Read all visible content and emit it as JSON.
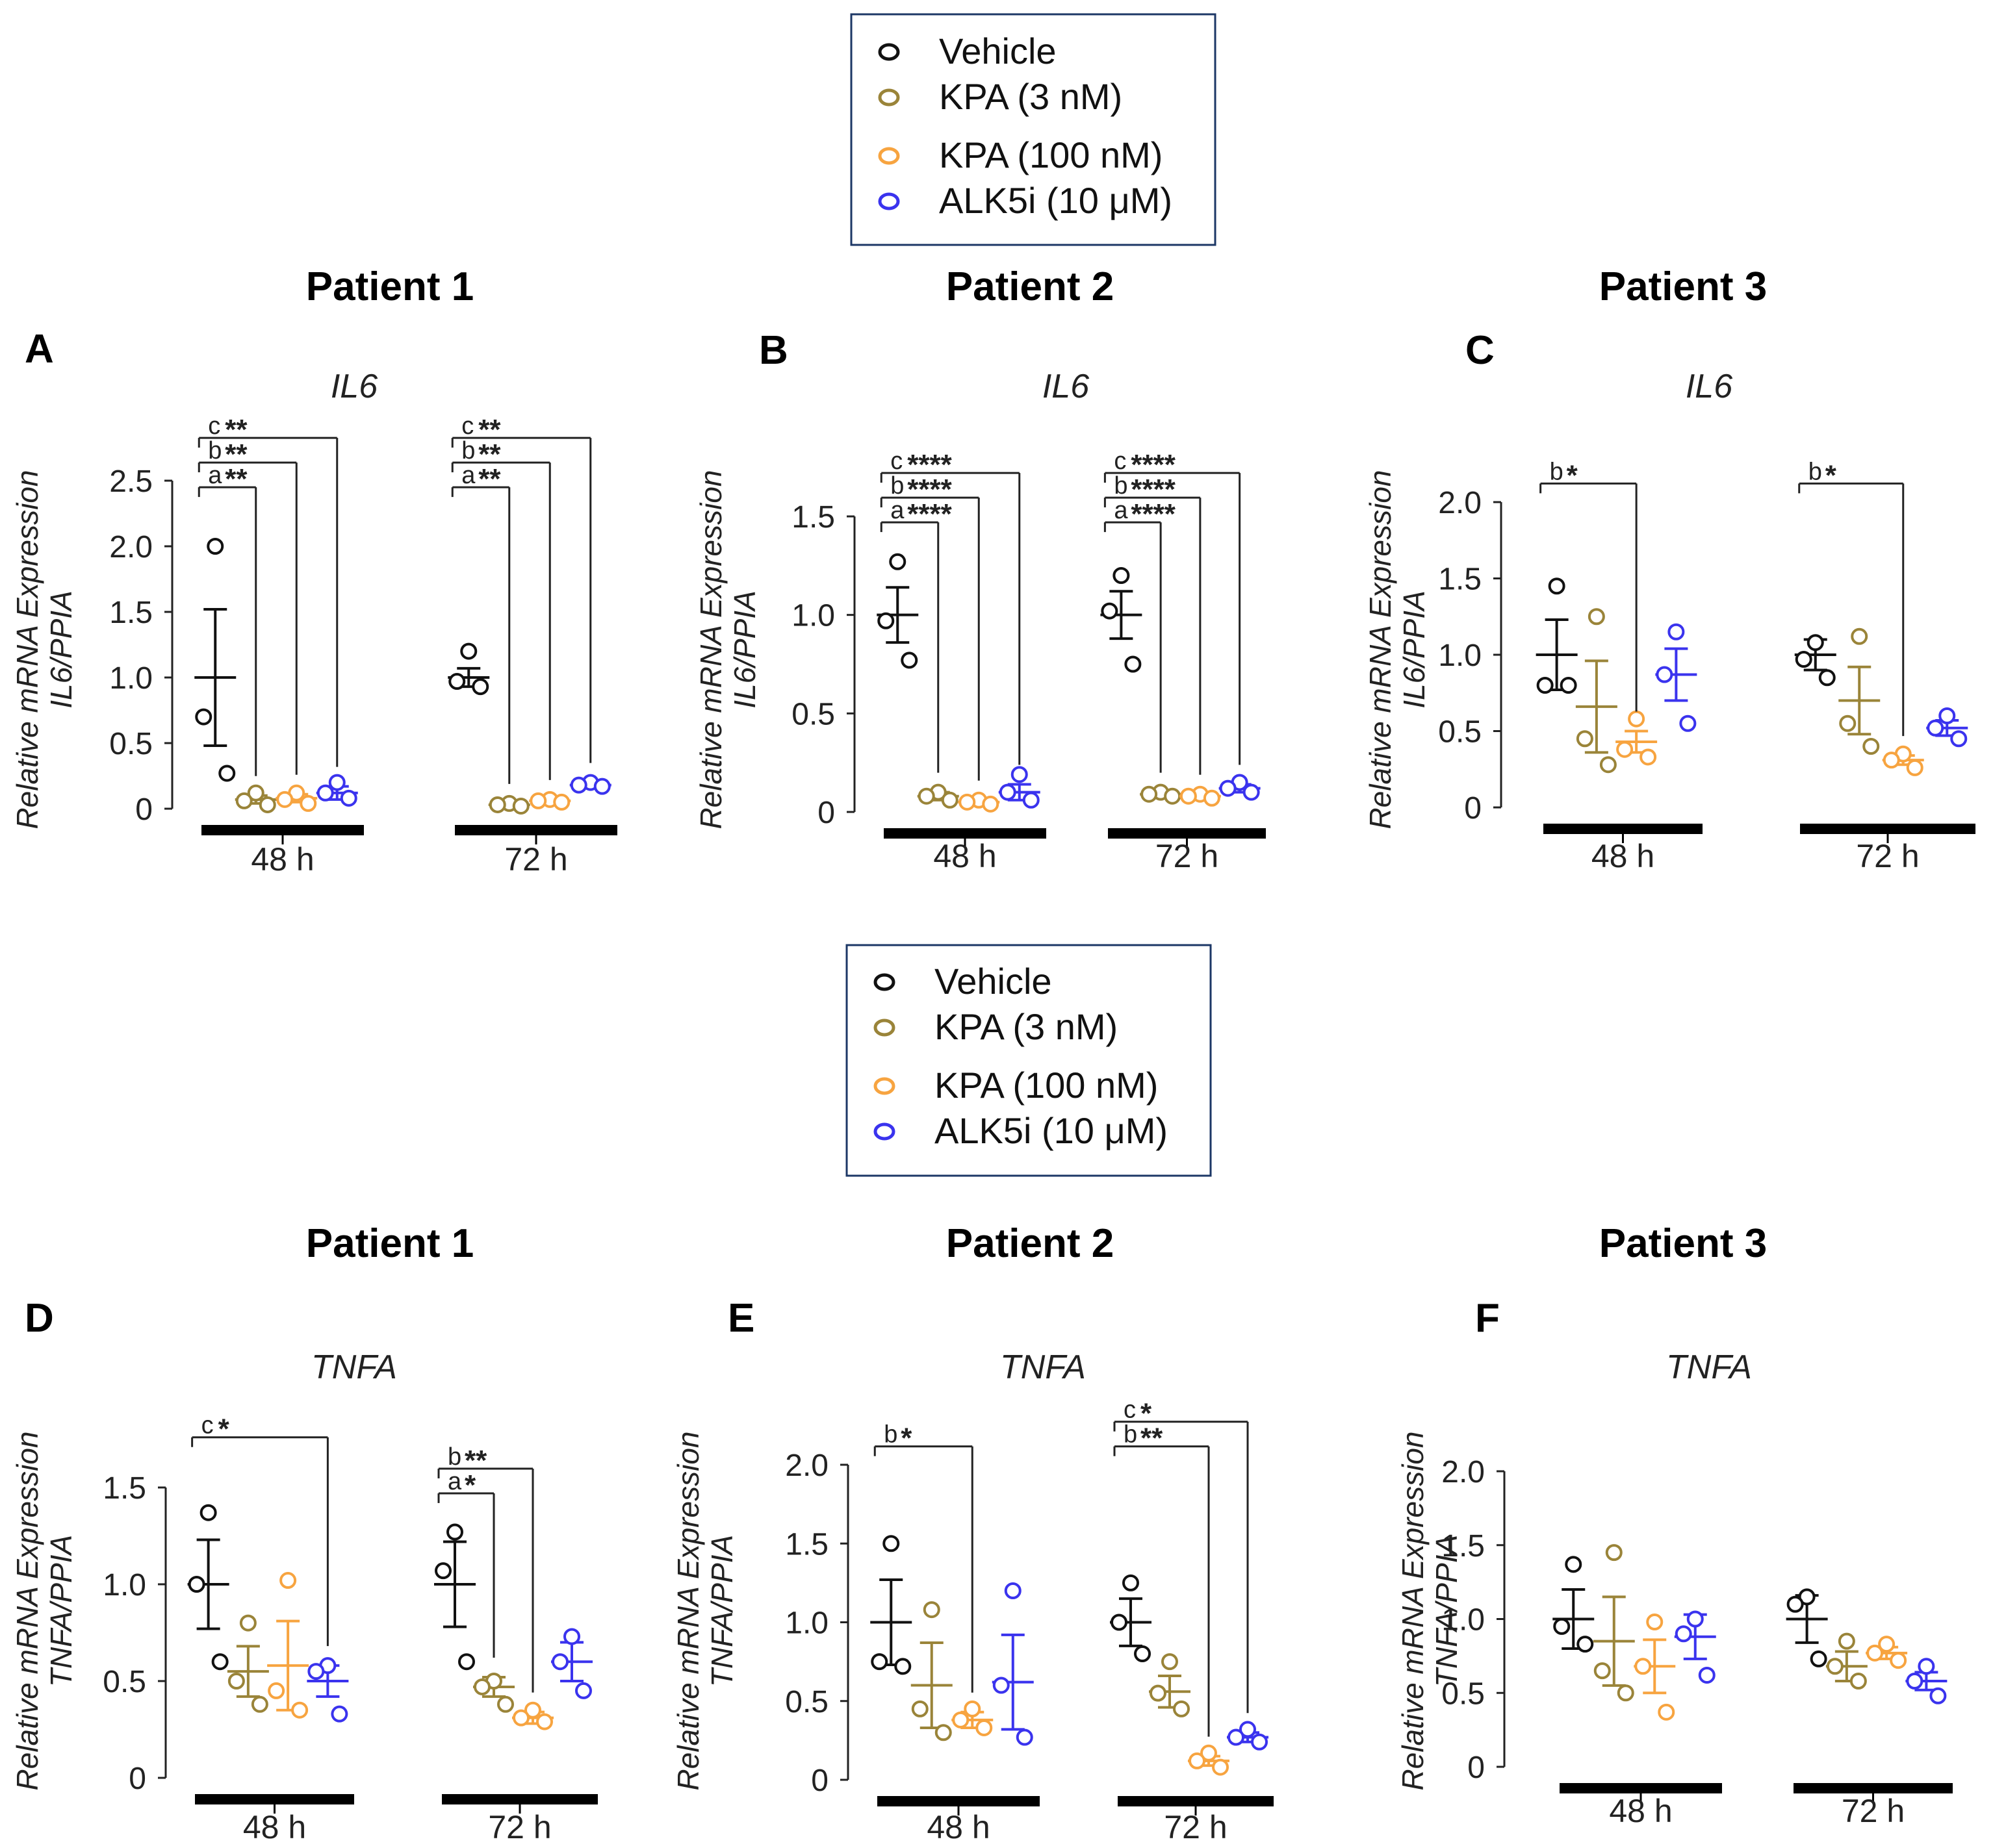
{
  "legend": {
    "items": [
      {
        "label": "Vehicle",
        "color": "#111111"
      },
      {
        "label": "KPA (3 nM)",
        "color": "#9a8439"
      },
      {
        "label": "KPA (100 nM)",
        "color": "#f7a440"
      },
      {
        "label": "ALK5i (10 μM)",
        "color": "#3a33ee"
      }
    ],
    "border_color": "#1c3766"
  },
  "chart_data": [
    {
      "type": "scatter",
      "panel": "A",
      "patient": "Patient 1",
      "gene": "IL6",
      "ylabel": [
        "Relative mRNA Expression",
        "IL6/PPIA"
      ],
      "ylim": [
        0,
        2.5
      ],
      "yticks": [
        "0",
        "0.5",
        "1.0",
        "1.5",
        "2.0",
        "2.5"
      ],
      "groups": [
        "48 h",
        "72 h"
      ],
      "series": [
        {
          "name": "Vehicle",
          "g48": {
            "mean": 1.0,
            "sem": 0.52,
            "points": [
              2.0,
              0.7,
              0.27
            ]
          },
          "g72": {
            "mean": 1.0,
            "sem": 0.07,
            "points": [
              1.2,
              0.97,
              0.93
            ]
          }
        },
        {
          "name": "KPA (3 nM)",
          "g48": {
            "mean": 0.07,
            "sem": 0.03,
            "points": [
              0.12,
              0.06,
              0.03
            ]
          },
          "g72": {
            "mean": 0.03,
            "sem": 0.01,
            "points": [
              0.04,
              0.03,
              0.02
            ]
          }
        },
        {
          "name": "KPA (100 nM)",
          "g48": {
            "mean": 0.08,
            "sem": 0.03,
            "points": [
              0.12,
              0.07,
              0.04
            ]
          },
          "g72": {
            "mean": 0.06,
            "sem": 0.01,
            "points": [
              0.07,
              0.06,
              0.05
            ]
          }
        },
        {
          "name": "ALK5i (10 μM)",
          "g48": {
            "mean": 0.12,
            "sem": 0.05,
            "points": [
              0.2,
              0.12,
              0.08
            ]
          },
          "g72": {
            "mean": 0.18,
            "sem": 0.02,
            "points": [
              0.2,
              0.18,
              0.17
            ]
          }
        }
      ],
      "significance": [
        {
          "group": "48 h",
          "to": 1,
          "letter": "a",
          "stars": "**"
        },
        {
          "group": "48 h",
          "to": 2,
          "letter": "b",
          "stars": "**"
        },
        {
          "group": "48 h",
          "to": 3,
          "letter": "c",
          "stars": "**"
        },
        {
          "group": "72 h",
          "to": 1,
          "letter": "a",
          "stars": "**"
        },
        {
          "group": "72 h",
          "to": 2,
          "letter": "b",
          "stars": "**"
        },
        {
          "group": "72 h",
          "to": 3,
          "letter": "c",
          "stars": "**"
        }
      ]
    },
    {
      "type": "scatter",
      "panel": "B",
      "patient": "Patient 2",
      "gene": "IL6",
      "ylabel": [
        "Relative mRNA Expression",
        "IL6/PPIA"
      ],
      "ylim": [
        0,
        1.5
      ],
      "yticks": [
        "0",
        "0.5",
        "1.0",
        "1.5"
      ],
      "groups": [
        "48 h",
        "72 h"
      ],
      "series": [
        {
          "name": "Vehicle",
          "g48": {
            "mean": 1.0,
            "sem": 0.14,
            "points": [
              1.27,
              0.97,
              0.77
            ]
          },
          "g72": {
            "mean": 1.0,
            "sem": 0.12,
            "points": [
              1.2,
              1.02,
              0.75
            ]
          }
        },
        {
          "name": "KPA (3 nM)",
          "g48": {
            "mean": 0.08,
            "sem": 0.02,
            "points": [
              0.1,
              0.08,
              0.06
            ]
          },
          "g72": {
            "mean": 0.09,
            "sem": 0.01,
            "points": [
              0.1,
              0.09,
              0.08
            ]
          }
        },
        {
          "name": "KPA (100 nM)",
          "g48": {
            "mean": 0.05,
            "sem": 0.01,
            "points": [
              0.06,
              0.05,
              0.04
            ]
          },
          "g72": {
            "mean": 0.08,
            "sem": 0.01,
            "points": [
              0.09,
              0.08,
              0.07
            ]
          }
        },
        {
          "name": "ALK5i (10 μM)",
          "g48": {
            "mean": 0.1,
            "sem": 0.04,
            "points": [
              0.19,
              0.1,
              0.06
            ]
          },
          "g72": {
            "mean": 0.12,
            "sem": 0.02,
            "points": [
              0.15,
              0.12,
              0.1
            ]
          }
        }
      ],
      "significance": [
        {
          "group": "48 h",
          "to": 1,
          "letter": "a",
          "stars": "****"
        },
        {
          "group": "48 h",
          "to": 2,
          "letter": "b",
          "stars": "****"
        },
        {
          "group": "48 h",
          "to": 3,
          "letter": "c",
          "stars": "****"
        },
        {
          "group": "72 h",
          "to": 1,
          "letter": "a",
          "stars": "****"
        },
        {
          "group": "72 h",
          "to": 2,
          "letter": "b",
          "stars": "****"
        },
        {
          "group": "72 h",
          "to": 3,
          "letter": "c",
          "stars": "****"
        }
      ]
    },
    {
      "type": "scatter",
      "panel": "C",
      "patient": "Patient 3",
      "gene": "IL6",
      "ylabel": [
        "Relative mRNA Expression",
        "IL6/PPIA"
      ],
      "ylim": [
        0,
        2.0
      ],
      "yticks": [
        "0",
        "0.5",
        "1.0",
        "1.5",
        "2.0"
      ],
      "groups": [
        "48 h",
        "72 h"
      ],
      "series": [
        {
          "name": "Vehicle",
          "g48": {
            "mean": 1.0,
            "sem": 0.23,
            "points": [
              1.45,
              0.8,
              0.8
            ]
          },
          "g72": {
            "mean": 1.0,
            "sem": 0.1,
            "points": [
              1.08,
              0.97,
              0.85
            ]
          }
        },
        {
          "name": "KPA (3 nM)",
          "g48": {
            "mean": 0.66,
            "sem": 0.3,
            "points": [
              1.25,
              0.45,
              0.28
            ]
          },
          "g72": {
            "mean": 0.7,
            "sem": 0.22,
            "points": [
              1.12,
              0.55,
              0.4
            ]
          }
        },
        {
          "name": "KPA (100 nM)",
          "g48": {
            "mean": 0.43,
            "sem": 0.07,
            "points": [
              0.58,
              0.38,
              0.33
            ]
          },
          "g72": {
            "mean": 0.31,
            "sem": 0.03,
            "points": [
              0.35,
              0.31,
              0.26
            ]
          }
        },
        {
          "name": "ALK5i (10 μM)",
          "g48": {
            "mean": 0.87,
            "sem": 0.17,
            "points": [
              1.15,
              0.87,
              0.55
            ]
          },
          "g72": {
            "mean": 0.52,
            "sem": 0.05,
            "points": [
              0.6,
              0.52,
              0.45
            ]
          }
        }
      ],
      "significance": [
        {
          "group": "48 h",
          "to": 2,
          "letter": "b",
          "stars": "*"
        },
        {
          "group": "72 h",
          "to": 2,
          "letter": "b",
          "stars": "*"
        }
      ]
    },
    {
      "type": "scatter",
      "panel": "D",
      "patient": "Patient 1",
      "gene": "TNFA",
      "ylabel": [
        "Relative mRNA Expression",
        "TNFA/PPIA"
      ],
      "ylim": [
        0,
        1.5
      ],
      "yticks": [
        "0",
        "0.5",
        "1.0",
        "1.5"
      ],
      "groups": [
        "48 h",
        "72 h"
      ],
      "series": [
        {
          "name": "Vehicle",
          "g48": {
            "mean": 1.0,
            "sem": 0.23,
            "points": [
              1.37,
              1.0,
              0.6
            ]
          },
          "g72": {
            "mean": 1.0,
            "sem": 0.22,
            "points": [
              1.27,
              1.07,
              0.6
            ]
          }
        },
        {
          "name": "KPA (3 nM)",
          "g48": {
            "mean": 0.55,
            "sem": 0.13,
            "points": [
              0.8,
              0.5,
              0.38
            ]
          },
          "g72": {
            "mean": 0.47,
            "sem": 0.05,
            "points": [
              0.5,
              0.47,
              0.38
            ]
          }
        },
        {
          "name": "KPA (100 nM)",
          "g48": {
            "mean": 0.58,
            "sem": 0.23,
            "points": [
              1.02,
              0.45,
              0.35
            ]
          },
          "g72": {
            "mean": 0.31,
            "sem": 0.03,
            "points": [
              0.35,
              0.31,
              0.29
            ]
          }
        },
        {
          "name": "ALK5i (10 μM)",
          "g48": {
            "mean": 0.5,
            "sem": 0.08,
            "points": [
              0.58,
              0.55,
              0.33
            ]
          },
          "g72": {
            "mean": 0.6,
            "sem": 0.1,
            "points": [
              0.73,
              0.6,
              0.45
            ]
          }
        }
      ],
      "significance": [
        {
          "group": "48 h",
          "to": 3,
          "letter": "c",
          "stars": "*"
        },
        {
          "group": "72 h",
          "to": 1,
          "letter": "a",
          "stars": "*"
        },
        {
          "group": "72 h",
          "to": 2,
          "letter": "b",
          "stars": "**"
        }
      ]
    },
    {
      "type": "scatter",
      "panel": "E",
      "patient": "Patient 2",
      "gene": "TNFA",
      "ylabel": [
        "Relative mRNA Expression",
        "TNFA/PPIA"
      ],
      "ylim": [
        0,
        2.0
      ],
      "yticks": [
        "0",
        "0.5",
        "1.0",
        "1.5",
        "2.0"
      ],
      "groups": [
        "48 h",
        "72 h"
      ],
      "series": [
        {
          "name": "Vehicle",
          "g48": {
            "mean": 1.0,
            "sem": 0.27,
            "points": [
              1.5,
              0.75,
              0.72
            ]
          },
          "g72": {
            "mean": 1.0,
            "sem": 0.15,
            "points": [
              1.25,
              1.0,
              0.8
            ]
          }
        },
        {
          "name": "KPA (3 nM)",
          "g48": {
            "mean": 0.6,
            "sem": 0.27,
            "points": [
              1.08,
              0.45,
              0.3
            ]
          },
          "g72": {
            "mean": 0.56,
            "sem": 0.1,
            "points": [
              0.75,
              0.55,
              0.45
            ]
          }
        },
        {
          "name": "KPA (100 nM)",
          "g48": {
            "mean": 0.38,
            "sem": 0.05,
            "points": [
              0.45,
              0.38,
              0.33
            ]
          },
          "g72": {
            "mean": 0.12,
            "sem": 0.03,
            "points": [
              0.17,
              0.12,
              0.08
            ]
          }
        },
        {
          "name": "ALK5i (10 μM)",
          "g48": {
            "mean": 0.62,
            "sem": 0.3,
            "points": [
              1.2,
              0.6,
              0.27
            ]
          },
          "g72": {
            "mean": 0.27,
            "sem": 0.03,
            "points": [
              0.32,
              0.27,
              0.24
            ]
          }
        }
      ],
      "significance": [
        {
          "group": "48 h",
          "to": 2,
          "letter": "b",
          "stars": "*"
        },
        {
          "group": "72 h",
          "to": 2,
          "letter": "b",
          "stars": "**"
        },
        {
          "group": "72 h",
          "to": 3,
          "letter": "c",
          "stars": "*"
        }
      ]
    },
    {
      "type": "scatter",
      "panel": "F",
      "patient": "Patient 3",
      "gene": "TNFA",
      "ylabel": [
        "Relative mRNA Expression",
        "TNFA/PPIA"
      ],
      "ylim": [
        0,
        2.0
      ],
      "yticks": [
        "0",
        "0.5",
        "1.0",
        "1.5",
        "2.0"
      ],
      "groups": [
        "48 h",
        "72 h"
      ],
      "series": [
        {
          "name": "Vehicle",
          "g48": {
            "mean": 1.0,
            "sem": 0.2,
            "points": [
              1.37,
              0.95,
              0.83
            ]
          },
          "g72": {
            "mean": 1.0,
            "sem": 0.16,
            "points": [
              1.15,
              1.1,
              0.73
            ]
          }
        },
        {
          "name": "KPA (3 nM)",
          "g48": {
            "mean": 0.85,
            "sem": 0.3,
            "points": [
              1.45,
              0.65,
              0.5
            ]
          },
          "g72": {
            "mean": 0.68,
            "sem": 0.1,
            "points": [
              0.85,
              0.68,
              0.58
            ]
          }
        },
        {
          "name": "KPA (100 nM)",
          "g48": {
            "mean": 0.68,
            "sem": 0.18,
            "points": [
              0.98,
              0.68,
              0.37
            ]
          },
          "g72": {
            "mean": 0.77,
            "sem": 0.04,
            "points": [
              0.83,
              0.77,
              0.72
            ]
          }
        },
        {
          "name": "ALK5i (10 μM)",
          "g48": {
            "mean": 0.88,
            "sem": 0.15,
            "points": [
              1.0,
              0.9,
              0.62
            ]
          },
          "g72": {
            "mean": 0.58,
            "sem": 0.06,
            "points": [
              0.68,
              0.58,
              0.48
            ]
          }
        }
      ],
      "significance": []
    }
  ]
}
